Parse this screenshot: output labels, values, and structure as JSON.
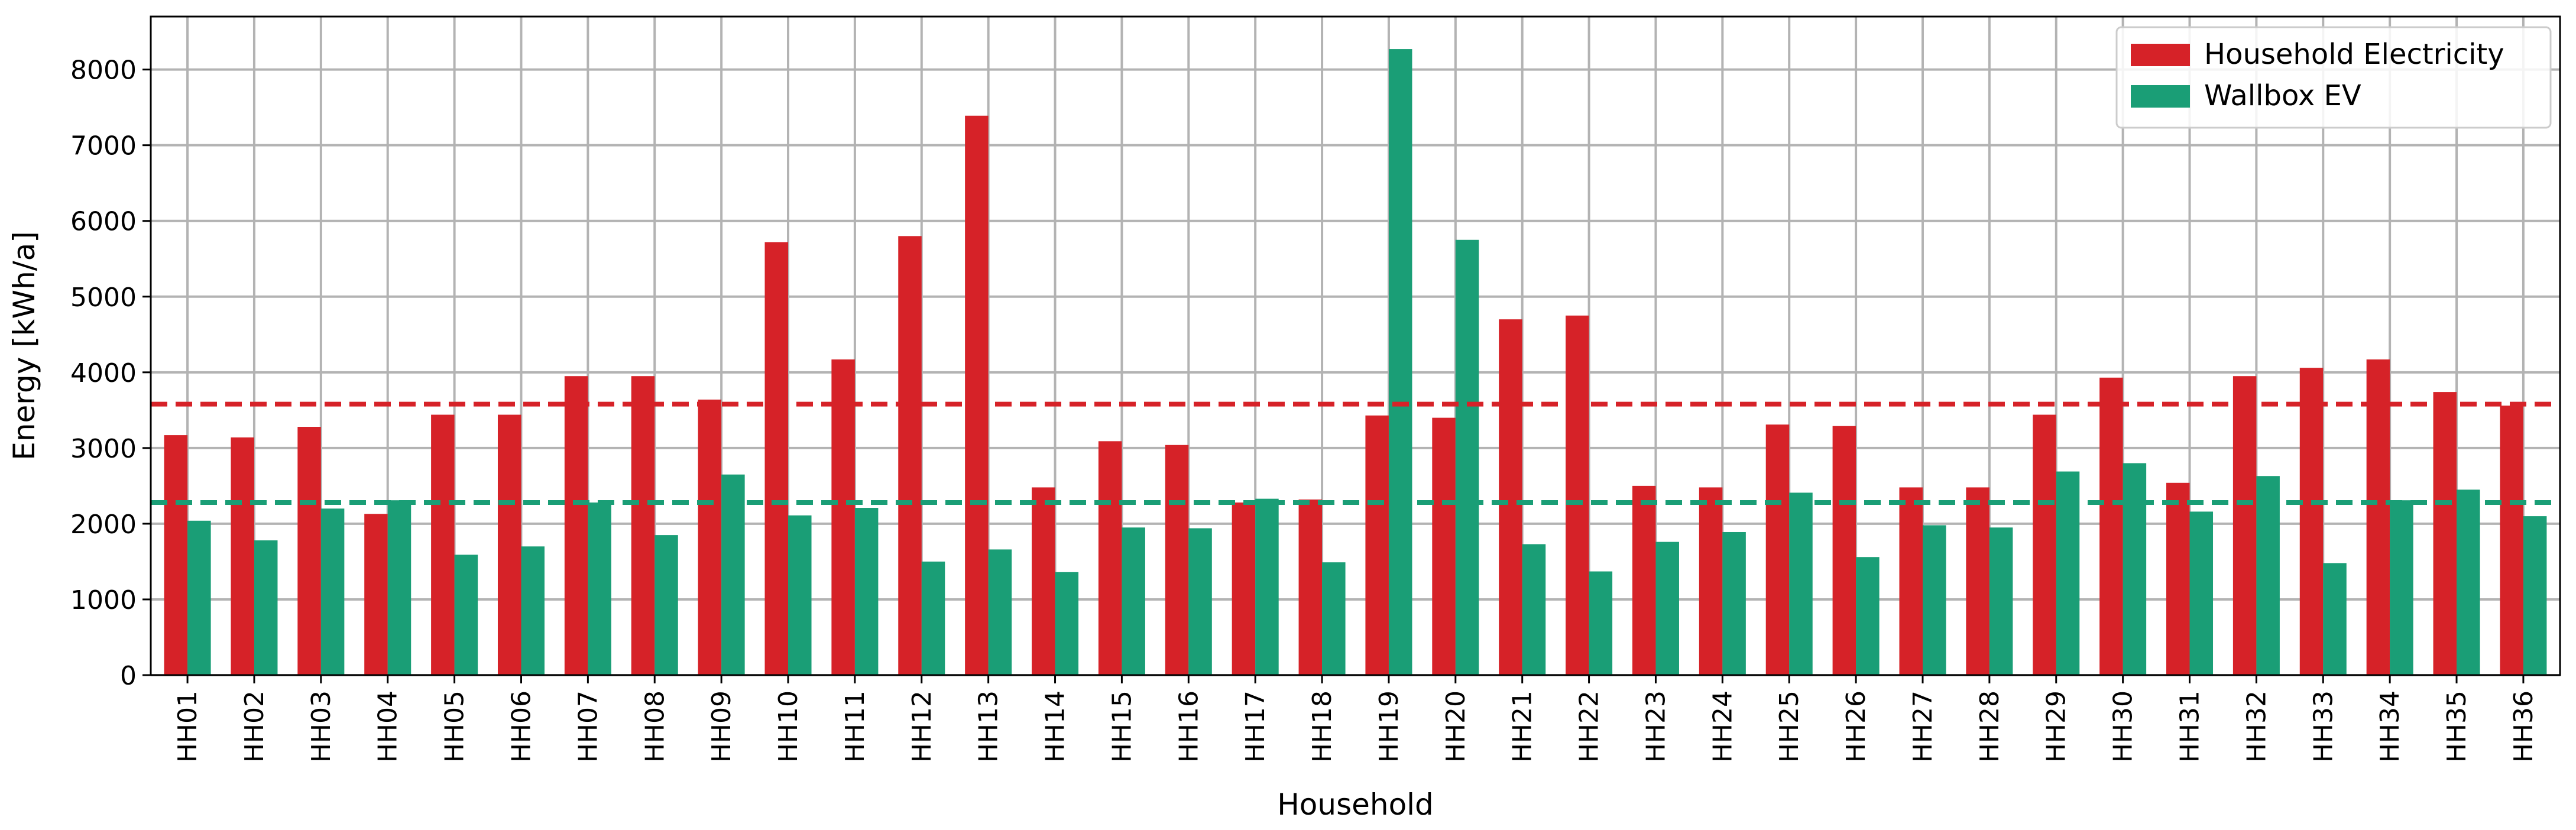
{
  "colors": {
    "household": "#d62228",
    "wallbox": "#1a9e76",
    "grid": "#b3b3b3"
  },
  "chart_data": {
    "type": "bar",
    "xlabel": "Household",
    "ylabel": "Energy [kWh/a]",
    "ylim": [
      0,
      8700
    ],
    "yticks": [
      0,
      1000,
      2000,
      3000,
      4000,
      5000,
      6000,
      7000,
      8000
    ],
    "ytick_labels": [
      "0",
      "1000",
      "2000",
      "3000",
      "4000",
      "5000",
      "6000",
      "7000",
      "8000"
    ],
    "grid": true,
    "legend_position": "top-right",
    "categories": [
      "HH01",
      "HH02",
      "HH03",
      "HH04",
      "HH05",
      "HH06",
      "HH07",
      "HH08",
      "HH09",
      "HH10",
      "HH11",
      "HH12",
      "HH13",
      "HH14",
      "HH15",
      "HH16",
      "HH17",
      "HH18",
      "HH19",
      "HH20",
      "HH21",
      "HH22",
      "HH23",
      "HH24",
      "HH25",
      "HH26",
      "HH27",
      "HH28",
      "HH29",
      "HH30",
      "HH31",
      "HH32",
      "HH33",
      "HH34",
      "HH35",
      "HH36"
    ],
    "series": [
      {
        "name": "Household Electricity",
        "color": "#d62228",
        "values": [
          3170,
          3140,
          3280,
          2130,
          3440,
          3440,
          3950,
          3950,
          3640,
          5720,
          4170,
          5800,
          7390,
          2480,
          3090,
          3040,
          2280,
          2320,
          3430,
          3400,
          4700,
          4750,
          2500,
          2480,
          3310,
          3290,
          2480,
          2480,
          3440,
          3930,
          2540,
          3950,
          4060,
          4170,
          3740,
          3560
        ]
      },
      {
        "name": "Wallbox EV",
        "color": "#1a9e76",
        "values": [
          2040,
          1780,
          2200,
          2310,
          1590,
          1700,
          2280,
          1850,
          2650,
          2110,
          2210,
          1500,
          1660,
          1360,
          1950,
          1940,
          2330,
          1490,
          8270,
          5750,
          1730,
          1370,
          1760,
          1890,
          2410,
          1560,
          1980,
          1950,
          2690,
          2800,
          2160,
          2630,
          1480,
          2310,
          2450,
          2100
        ]
      }
    ],
    "reference_lines": [
      {
        "series": "Household Electricity",
        "value": 3580,
        "style": "dashed"
      },
      {
        "series": "Wallbox EV",
        "value": 2280,
        "style": "dashed"
      }
    ]
  }
}
